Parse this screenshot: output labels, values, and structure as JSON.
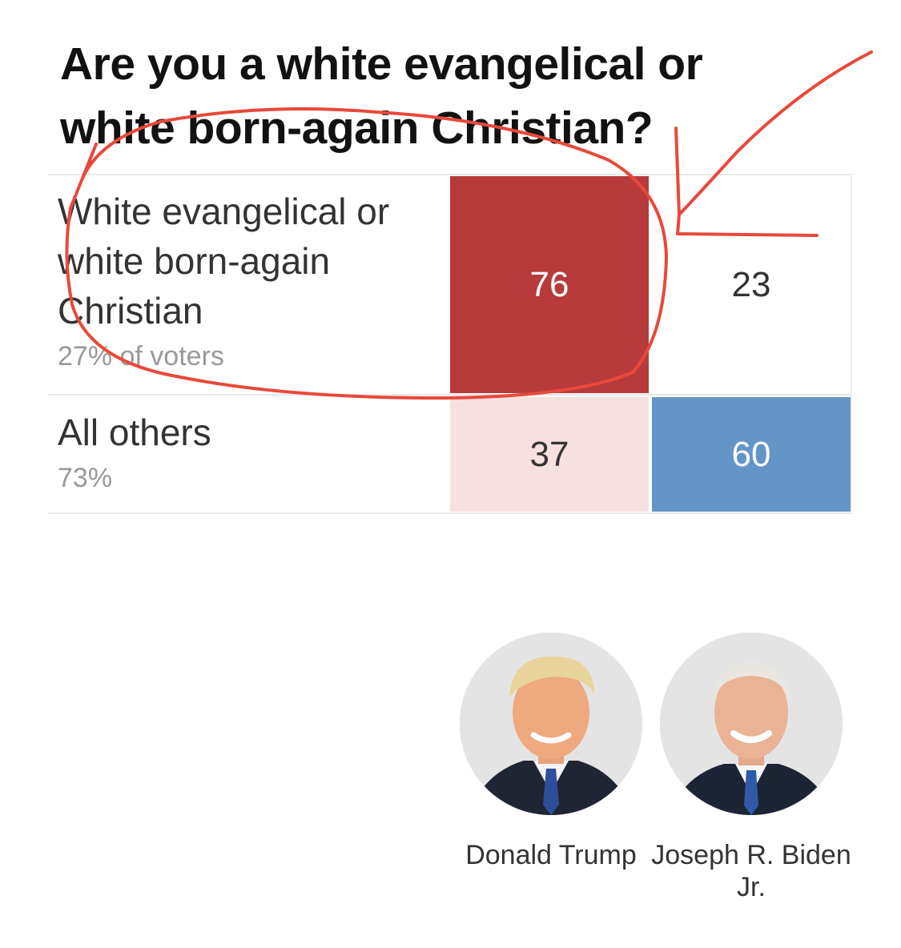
{
  "question": "Are you a white evangelical or white born-again Christian?",
  "colors": {
    "trump_strong": "#b73b3b",
    "trump_light": "#f6e0e0",
    "biden_strong": "#6495c7",
    "biden_light": "#ffffff",
    "annotation": "#e8493a"
  },
  "chart_data": {
    "type": "table",
    "title": "Are you a white evangelical or white born-again Christian?",
    "columns": [
      "Donald Trump",
      "Joseph R. Biden Jr."
    ],
    "rows": [
      {
        "label": "White evangelical or white born-again Christian",
        "share": "27% of voters",
        "values": [
          76,
          23
        ],
        "winner": 0
      },
      {
        "label": "All others",
        "share": "73%",
        "values": [
          37,
          60
        ],
        "winner": 1
      }
    ]
  },
  "candidates": [
    {
      "name": "Donald Trump",
      "portrait": "trump-portrait"
    },
    {
      "name": "Joseph R. Biden Jr.",
      "portrait": "biden-portrait"
    }
  ],
  "annotations": [
    "red-circle-highlight",
    "red-arrow-pointer"
  ]
}
